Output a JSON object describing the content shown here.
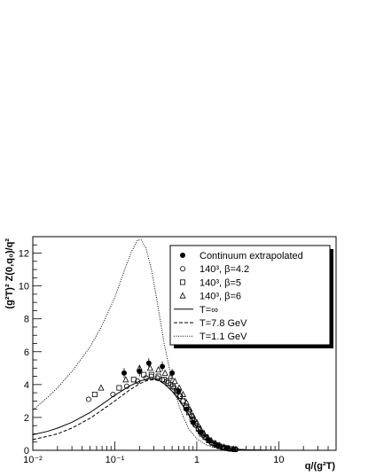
{
  "chart_data": {
    "type": "scatter",
    "title": "",
    "xlabel": "q/(g²T)",
    "ylabel": "(g²T)² Z(0,q₀)/q²",
    "x_scale": "log",
    "xlim": [
      0.01,
      50
    ],
    "ylim": [
      0,
      13
    ],
    "x_ticks": [
      {
        "value": 0.01,
        "label": "10⁻²"
      },
      {
        "value": 0.1,
        "label": "10⁻¹"
      },
      {
        "value": 1,
        "label": "1"
      },
      {
        "value": 10,
        "label": "10"
      }
    ],
    "y_ticks": [
      0,
      2,
      4,
      6,
      8,
      10,
      12
    ],
    "grid": false,
    "legend_position": "top-right",
    "series": [
      {
        "name": "Continuum extrapolated",
        "marker": "filled-circle",
        "points": [
          {
            "x": 0.13,
            "y": 4.7,
            "err": 0.3
          },
          {
            "x": 0.2,
            "y": 4.8,
            "err": 0.3
          },
          {
            "x": 0.26,
            "y": 5.3,
            "err": 0.3
          },
          {
            "x": 0.38,
            "y": 5.1,
            "err": 0.3
          },
          {
            "x": 0.5,
            "y": 4.7,
            "err": 0.25
          },
          {
            "x": 0.6,
            "y": 3.6,
            "err": 0.2
          },
          {
            "x": 0.75,
            "y": 2.5,
            "err": 0.15
          },
          {
            "x": 0.9,
            "y": 1.7,
            "err": 0.1
          },
          {
            "x": 1.1,
            "y": 1.1,
            "err": 0.08
          },
          {
            "x": 1.4,
            "y": 0.6,
            "err": 0.05
          },
          {
            "x": 1.8,
            "y": 0.3,
            "err": 0.04
          },
          {
            "x": 2.3,
            "y": 0.15,
            "err": 0.03
          }
        ]
      },
      {
        "name": "140³, β=4.2",
        "marker": "open-circle",
        "points": [
          {
            "x": 0.048,
            "y": 3.1
          },
          {
            "x": 0.095,
            "y": 3.4
          },
          {
            "x": 0.14,
            "y": 3.9
          },
          {
            "x": 0.19,
            "y": 4.2
          },
          {
            "x": 0.24,
            "y": 4.4
          },
          {
            "x": 0.28,
            "y": 4.5
          },
          {
            "x": 0.33,
            "y": 4.4
          },
          {
            "x": 0.38,
            "y": 4.3
          },
          {
            "x": 0.43,
            "y": 4.2
          },
          {
            "x": 0.48,
            "y": 4.0
          },
          {
            "x": 0.53,
            "y": 3.8
          },
          {
            "x": 0.58,
            "y": 3.6
          },
          {
            "x": 0.63,
            "y": 3.3
          },
          {
            "x": 0.68,
            "y": 3.0
          },
          {
            "x": 0.74,
            "y": 2.7
          },
          {
            "x": 0.8,
            "y": 2.4
          },
          {
            "x": 0.86,
            "y": 2.1
          },
          {
            "x": 0.92,
            "y": 1.8
          },
          {
            "x": 0.98,
            "y": 1.5
          },
          {
            "x": 1.05,
            "y": 1.3
          },
          {
            "x": 1.12,
            "y": 1.1
          },
          {
            "x": 1.2,
            "y": 0.9
          },
          {
            "x": 1.3,
            "y": 0.75
          },
          {
            "x": 1.4,
            "y": 0.6
          },
          {
            "x": 1.5,
            "y": 0.48
          },
          {
            "x": 1.62,
            "y": 0.38
          },
          {
            "x": 1.75,
            "y": 0.3
          },
          {
            "x": 1.9,
            "y": 0.23
          },
          {
            "x": 2.05,
            "y": 0.18
          },
          {
            "x": 2.2,
            "y": 0.14
          },
          {
            "x": 2.4,
            "y": 0.11
          },
          {
            "x": 2.6,
            "y": 0.08
          },
          {
            "x": 2.8,
            "y": 0.06
          },
          {
            "x": 3.0,
            "y": 0.05
          }
        ]
      },
      {
        "name": "140³, β=5",
        "marker": "open-square",
        "points": [
          {
            "x": 0.057,
            "y": 3.4
          },
          {
            "x": 0.113,
            "y": 3.8
          },
          {
            "x": 0.17,
            "y": 4.3
          },
          {
            "x": 0.226,
            "y": 4.6
          },
          {
            "x": 0.28,
            "y": 4.6
          },
          {
            "x": 0.34,
            "y": 4.5
          },
          {
            "x": 0.4,
            "y": 4.3
          },
          {
            "x": 0.45,
            "y": 4.1
          },
          {
            "x": 0.51,
            "y": 3.9
          },
          {
            "x": 0.57,
            "y": 3.6
          },
          {
            "x": 0.62,
            "y": 3.3
          },
          {
            "x": 0.68,
            "y": 3.0
          },
          {
            "x": 0.74,
            "y": 2.6
          },
          {
            "x": 0.8,
            "y": 2.3
          },
          {
            "x": 0.88,
            "y": 1.9
          },
          {
            "x": 0.96,
            "y": 1.6
          },
          {
            "x": 1.05,
            "y": 1.3
          },
          {
            "x": 1.15,
            "y": 1.0
          },
          {
            "x": 1.27,
            "y": 0.8
          },
          {
            "x": 1.4,
            "y": 0.6
          },
          {
            "x": 1.55,
            "y": 0.45
          },
          {
            "x": 1.72,
            "y": 0.33
          },
          {
            "x": 1.9,
            "y": 0.24
          },
          {
            "x": 2.1,
            "y": 0.17
          },
          {
            "x": 2.35,
            "y": 0.12
          },
          {
            "x": 2.6,
            "y": 0.08
          },
          {
            "x": 2.9,
            "y": 0.06
          }
        ]
      },
      {
        "name": "140³, β=6",
        "marker": "open-triangle",
        "points": [
          {
            "x": 0.068,
            "y": 3.8
          },
          {
            "x": 0.136,
            "y": 4.3
          },
          {
            "x": 0.2,
            "y": 5.0
          },
          {
            "x": 0.27,
            "y": 5.0
          },
          {
            "x": 0.34,
            "y": 4.9
          },
          {
            "x": 0.41,
            "y": 4.7
          },
          {
            "x": 0.48,
            "y": 4.5
          },
          {
            "x": 0.54,
            "y": 4.2
          },
          {
            "x": 0.61,
            "y": 3.8
          },
          {
            "x": 0.68,
            "y": 3.4
          },
          {
            "x": 0.75,
            "y": 2.9
          },
          {
            "x": 0.82,
            "y": 2.5
          },
          {
            "x": 0.9,
            "y": 2.1
          },
          {
            "x": 1.0,
            "y": 1.7
          },
          {
            "x": 1.1,
            "y": 1.35
          },
          {
            "x": 1.22,
            "y": 1.05
          },
          {
            "x": 1.36,
            "y": 0.8
          },
          {
            "x": 1.5,
            "y": 0.6
          },
          {
            "x": 1.7,
            "y": 0.42
          },
          {
            "x": 1.9,
            "y": 0.3
          },
          {
            "x": 2.15,
            "y": 0.2
          },
          {
            "x": 2.45,
            "y": 0.13
          },
          {
            "x": 2.8,
            "y": 0.08
          }
        ]
      }
    ],
    "curves": [
      {
        "name": "T=∞",
        "style": "solid",
        "points": [
          {
            "x": 0.01,
            "y": 0.95
          },
          {
            "x": 0.015,
            "y": 1.15
          },
          {
            "x": 0.02,
            "y": 1.35
          },
          {
            "x": 0.03,
            "y": 1.7
          },
          {
            "x": 0.05,
            "y": 2.3
          },
          {
            "x": 0.07,
            "y": 2.8
          },
          {
            "x": 0.1,
            "y": 3.35
          },
          {
            "x": 0.15,
            "y": 3.9
          },
          {
            "x": 0.2,
            "y": 4.2
          },
          {
            "x": 0.25,
            "y": 4.35
          },
          {
            "x": 0.3,
            "y": 4.35
          },
          {
            "x": 0.35,
            "y": 4.25
          },
          {
            "x": 0.4,
            "y": 4.05
          },
          {
            "x": 0.5,
            "y": 3.6
          },
          {
            "x": 0.6,
            "y": 3.1
          },
          {
            "x": 0.7,
            "y": 2.6
          },
          {
            "x": 0.8,
            "y": 2.15
          },
          {
            "x": 0.9,
            "y": 1.75
          },
          {
            "x": 1.0,
            "y": 1.42
          },
          {
            "x": 1.2,
            "y": 0.95
          },
          {
            "x": 1.5,
            "y": 0.55
          },
          {
            "x": 2.0,
            "y": 0.25
          },
          {
            "x": 2.5,
            "y": 0.13
          },
          {
            "x": 3.0,
            "y": 0.07
          },
          {
            "x": 4.0,
            "y": 0.03
          },
          {
            "x": 6.0,
            "y": 0.01
          },
          {
            "x": 10,
            "y": 0.002
          },
          {
            "x": 20,
            "y": 0
          },
          {
            "x": 50,
            "y": 0
          }
        ]
      },
      {
        "name": "T=7.8 GeV",
        "style": "dashed",
        "points": [
          {
            "x": 0.01,
            "y": 0.65
          },
          {
            "x": 0.015,
            "y": 0.85
          },
          {
            "x": 0.02,
            "y": 1.0
          },
          {
            "x": 0.03,
            "y": 1.35
          },
          {
            "x": 0.05,
            "y": 1.95
          },
          {
            "x": 0.07,
            "y": 2.45
          },
          {
            "x": 0.1,
            "y": 3.0
          },
          {
            "x": 0.15,
            "y": 3.65
          },
          {
            "x": 0.2,
            "y": 4.05
          },
          {
            "x": 0.25,
            "y": 4.25
          },
          {
            "x": 0.3,
            "y": 4.3
          },
          {
            "x": 0.35,
            "y": 4.22
          },
          {
            "x": 0.4,
            "y": 4.05
          },
          {
            "x": 0.5,
            "y": 3.6
          },
          {
            "x": 0.6,
            "y": 3.1
          },
          {
            "x": 0.7,
            "y": 2.6
          },
          {
            "x": 0.8,
            "y": 2.15
          },
          {
            "x": 0.9,
            "y": 1.75
          },
          {
            "x": 1.0,
            "y": 1.42
          },
          {
            "x": 1.2,
            "y": 0.95
          },
          {
            "x": 1.5,
            "y": 0.55
          },
          {
            "x": 2.0,
            "y": 0.25
          },
          {
            "x": 2.5,
            "y": 0.13
          },
          {
            "x": 3.0,
            "y": 0.07
          },
          {
            "x": 4.0,
            "y": 0.03
          },
          {
            "x": 6.0,
            "y": 0.01
          },
          {
            "x": 10,
            "y": 0.002
          },
          {
            "x": 20,
            "y": 0
          },
          {
            "x": 50,
            "y": 0
          }
        ]
      },
      {
        "name": "T=1.1 GeV",
        "style": "dotted",
        "points": [
          {
            "x": 0.01,
            "y": 2.45
          },
          {
            "x": 0.015,
            "y": 3.2
          },
          {
            "x": 0.02,
            "y": 3.8
          },
          {
            "x": 0.03,
            "y": 4.8
          },
          {
            "x": 0.05,
            "y": 6.3
          },
          {
            "x": 0.07,
            "y": 7.6
          },
          {
            "x": 0.1,
            "y": 9.3
          },
          {
            "x": 0.13,
            "y": 10.9
          },
          {
            "x": 0.16,
            "y": 12.1
          },
          {
            "x": 0.19,
            "y": 12.8
          },
          {
            "x": 0.21,
            "y": 12.8
          },
          {
            "x": 0.24,
            "y": 12.3
          },
          {
            "x": 0.28,
            "y": 11.0
          },
          {
            "x": 0.33,
            "y": 9.0
          },
          {
            "x": 0.4,
            "y": 6.5
          },
          {
            "x": 0.5,
            "y": 4.2
          },
          {
            "x": 0.6,
            "y": 2.8
          },
          {
            "x": 0.7,
            "y": 1.9
          },
          {
            "x": 0.8,
            "y": 1.3
          },
          {
            "x": 1.0,
            "y": 0.7
          },
          {
            "x": 1.3,
            "y": 0.33
          },
          {
            "x": 1.6,
            "y": 0.17
          },
          {
            "x": 2.0,
            "y": 0.08
          },
          {
            "x": 3.0,
            "y": 0.02
          },
          {
            "x": 5.0,
            "y": 0.005
          },
          {
            "x": 10,
            "y": 0
          },
          {
            "x": 50,
            "y": 0
          }
        ]
      }
    ]
  }
}
